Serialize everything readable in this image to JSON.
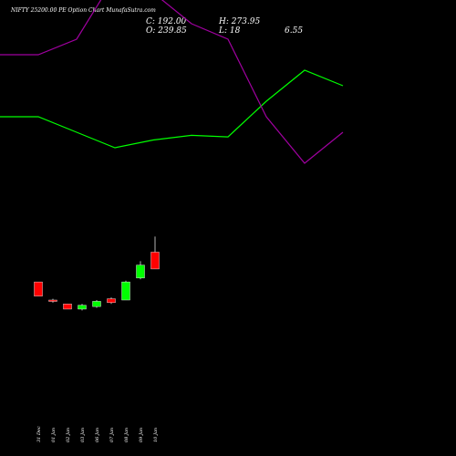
{
  "header": {
    "title": "NIFTY 25200.00 PE Option Chart MunafaSutra.com",
    "close": "C: 192.00",
    "open": "O: 239.85",
    "high": "H: 273.95",
    "low": "L: 18",
    "change": "6.55"
  },
  "colors": {
    "background": "#000000",
    "up_candle": "#00ff00",
    "down_candle": "#ff0000",
    "wick": "#ffffff",
    "green_line": "#00ff00",
    "purple_line": "#a000a0"
  },
  "chart_data": {
    "type": "candlestick",
    "categories": [
      "31 Dec",
      "01 Jan",
      "02 Jan",
      "03 Jan",
      "06 Jan",
      "07 Jan",
      "08 Jan",
      "09 Jan",
      "10 Jan"
    ],
    "candles": [
      {
        "open": 64,
        "high": 64,
        "low": 53,
        "close": 53,
        "dir": "down"
      },
      {
        "open": 50,
        "high": 51,
        "low": 48,
        "close": 49,
        "dir": "down"
      },
      {
        "open": 47,
        "high": 47,
        "low": 43,
        "close": 43,
        "dir": "down"
      },
      {
        "open": 43,
        "high": 47,
        "low": 42,
        "close": 46,
        "dir": "up"
      },
      {
        "open": 45,
        "high": 50,
        "low": 44,
        "close": 49,
        "dir": "up"
      },
      {
        "open": 51,
        "high": 52,
        "low": 47,
        "close": 48,
        "dir": "down"
      },
      {
        "open": 50,
        "high": 65,
        "low": 50,
        "close": 64,
        "dir": "up"
      },
      {
        "open": 67,
        "high": 80,
        "low": 66,
        "close": 77,
        "dir": "up"
      },
      {
        "open": 87,
        "high": 99,
        "low": 74,
        "close": 74,
        "dir": "down"
      }
    ],
    "green_line": [
      0.16,
      0.16,
      0.15,
      0.14,
      0.145,
      0.148,
      0.147,
      0.17,
      0.19,
      0.18
    ],
    "purple_line": [
      0.2,
      0.2,
      0.21,
      0.25,
      0.24,
      0.22,
      0.21,
      0.16,
      0.13,
      0.15
    ]
  }
}
